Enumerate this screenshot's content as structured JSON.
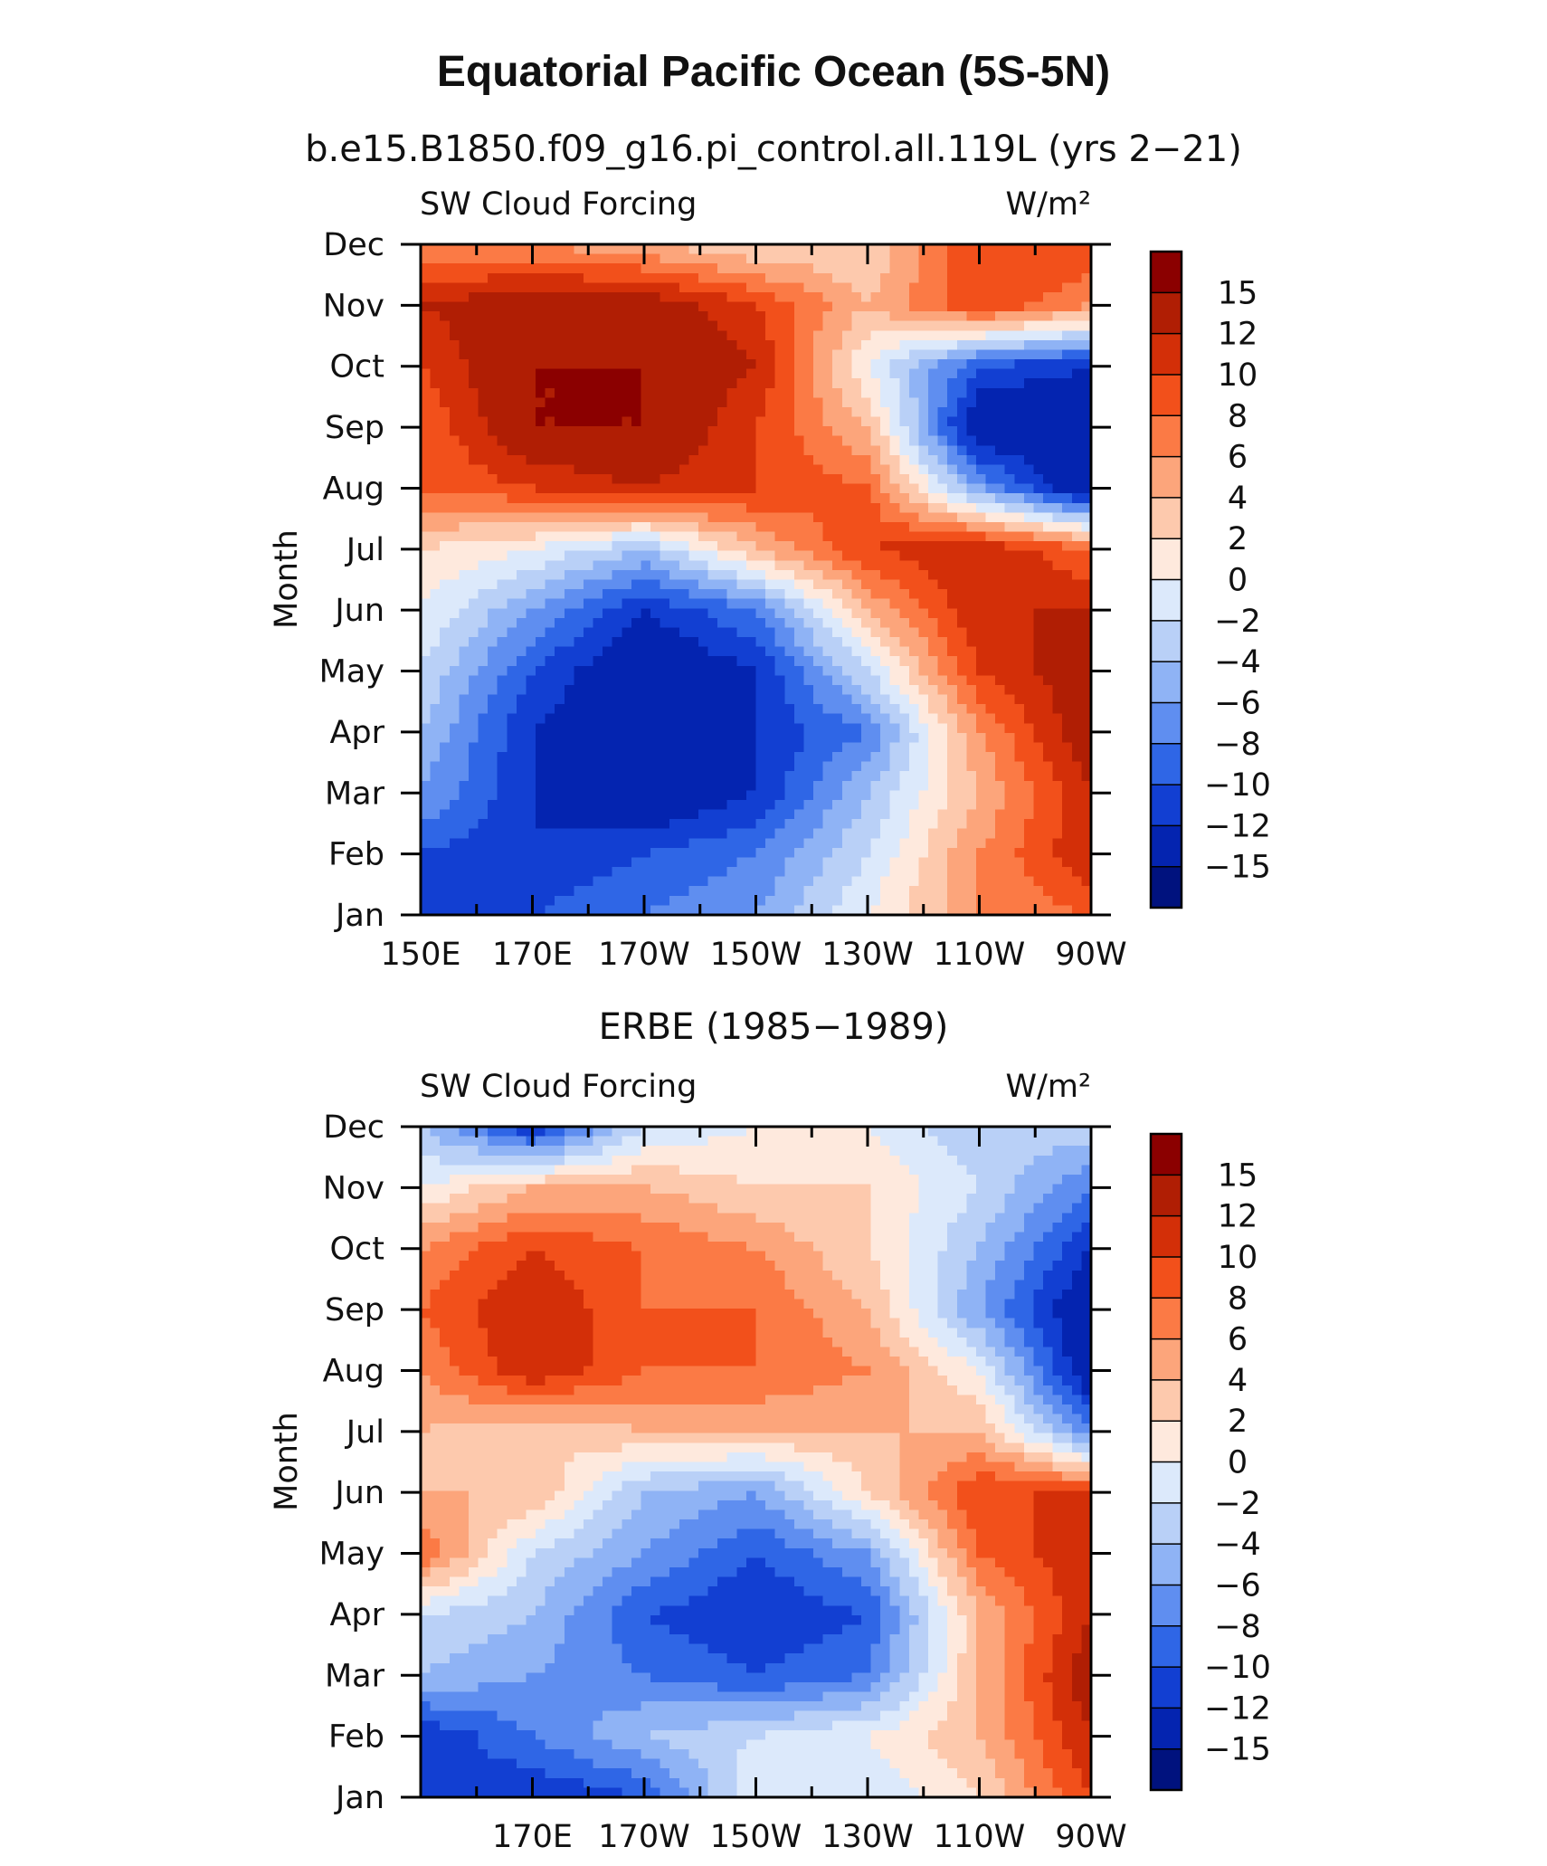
{
  "figure": {
    "title": "Equatorial Pacific Ocean (5S-5N)"
  },
  "colorbar": {
    "levels": [
      "15",
      "12",
      "10",
      "8",
      "6",
      "4",
      "2",
      "0",
      "−2",
      "−4",
      "−6",
      "−8",
      "−10",
      "−12",
      "−15"
    ],
    "colors": [
      "#8b0000",
      "#b01e04",
      "#d32f08",
      "#f2501b",
      "#fb7a45",
      "#fca57b",
      "#fdc9ad",
      "#fee9dd",
      "#dce9fb",
      "#b9d0f7",
      "#8fb3f5",
      "#5f8ef0",
      "#2f66e6",
      "#123fd2",
      "#0424b0",
      "#00127e"
    ]
  },
  "chart_data": [
    {
      "type": "heatmap",
      "title": "b.e15.B1850.f09_g16.pi_control.all.119L (yrs 2−21)",
      "left_label": "SW Cloud Forcing",
      "right_label": "W/m²",
      "xlabel": "",
      "ylabel": "Month",
      "x_tick_labels": [
        "150E",
        "170E",
        "170W",
        "150W",
        "130W",
        "110W",
        "90W"
      ],
      "x_range": [
        150,
        270
      ],
      "y_tick_labels": [
        "Jan",
        "Feb",
        "Mar",
        "Apr",
        "May",
        "Jun",
        "Jul",
        "Aug",
        "Sep",
        "Oct",
        "Nov",
        "Dec"
      ],
      "x": [
        150,
        170,
        190,
        210,
        230,
        250,
        270
      ],
      "y": [
        "Jan",
        "Feb",
        "Mar",
        "Apr",
        "May",
        "Jun",
        "Jul",
        "Aug",
        "Sep",
        "Oct",
        "Nov",
        "Dec"
      ],
      "z": [
        [
          -12,
          -10,
          -8,
          -6,
          0,
          6,
          8
        ],
        [
          -10,
          -12,
          -10,
          -8,
          -2,
          6,
          12
        ],
        [
          -6,
          -12,
          -15,
          -12,
          -4,
          4,
          12
        ],
        [
          -4,
          -12,
          -15,
          -12,
          -8,
          6,
          14
        ],
        [
          -2,
          -10,
          -15,
          -12,
          -2,
          10,
          14
        ],
        [
          0,
          -6,
          -12,
          -8,
          4,
          12,
          12
        ],
        [
          2,
          0,
          -4,
          4,
          10,
          12,
          8
        ],
        [
          8,
          10,
          12,
          10,
          8,
          -6,
          -15
        ],
        [
          8,
          15,
          15,
          10,
          4,
          -15,
          -15
        ],
        [
          10,
          15,
          15,
          12,
          0,
          -10,
          -12
        ],
        [
          12,
          14,
          14,
          10,
          4,
          10,
          6
        ],
        [
          6,
          6,
          4,
          2,
          2,
          10,
          10
        ]
      ],
      "levels": [
        -15,
        -12,
        -10,
        -8,
        -6,
        -4,
        -2,
        0,
        2,
        4,
        6,
        8,
        10,
        12,
        15
      ],
      "units": "W/m²"
    },
    {
      "type": "heatmap",
      "title": "ERBE (1985−1989)",
      "left_label": "SW Cloud Forcing",
      "right_label": "W/m²",
      "xlabel": "",
      "ylabel": "Month",
      "x_tick_labels": [
        "170E",
        "170W",
        "150W",
        "130W",
        "110W",
        "90W"
      ],
      "x_range": [
        150,
        270
      ],
      "y_tick_labels": [
        "Jan",
        "Feb",
        "Mar",
        "Apr",
        "May",
        "Jun",
        "Jul",
        "Aug",
        "Sep",
        "Oct",
        "Nov",
        "Dec"
      ],
      "x": [
        150,
        170,
        190,
        210,
        230,
        250,
        270
      ],
      "y": [
        "Jan",
        "Feb",
        "Mar",
        "Apr",
        "May",
        "Jun",
        "Jul",
        "Aug",
        "Sep",
        "Oct",
        "Nov",
        "Dec"
      ],
      "z": [
        [
          -10,
          -12,
          -10,
          0,
          -2,
          2,
          10
        ],
        [
          -12,
          -8,
          -4,
          -2,
          0,
          4,
          12
        ],
        [
          -4,
          -6,
          -8,
          -10,
          -8,
          4,
          14
        ],
        [
          -2,
          -4,
          -10,
          -12,
          -10,
          4,
          12
        ],
        [
          8,
          -2,
          -6,
          -10,
          -6,
          8,
          12
        ],
        [
          4,
          4,
          -4,
          -6,
          2,
          10,
          10
        ],
        [
          4,
          2,
          4,
          4,
          4,
          4,
          -8
        ],
        [
          6,
          12,
          8,
          8,
          6,
          0,
          -15
        ],
        [
          8,
          12,
          8,
          8,
          4,
          -6,
          -15
        ],
        [
          6,
          10,
          8,
          6,
          2,
          -4,
          -12
        ],
        [
          0,
          4,
          4,
          2,
          2,
          -2,
          -8
        ],
        [
          -4,
          -12,
          -2,
          0,
          0,
          -4,
          -2
        ]
      ],
      "levels": [
        -15,
        -12,
        -10,
        -8,
        -6,
        -4,
        -2,
        0,
        2,
        4,
        6,
        8,
        10,
        12,
        15
      ],
      "units": "W/m²"
    }
  ]
}
